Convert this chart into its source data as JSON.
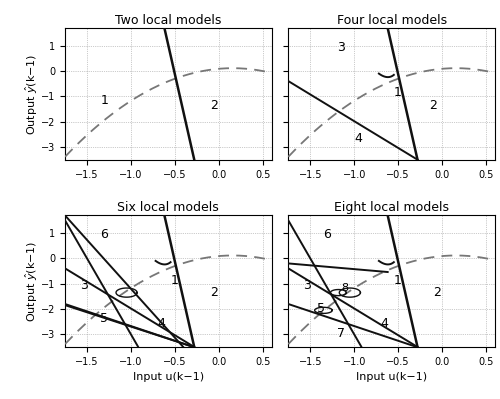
{
  "titles": [
    "Two local models",
    "Four local models",
    "Six local models",
    "Eight local models"
  ],
  "xlabel": "Input u(k−1)",
  "ylabel_left": "Output $\\hat{y}$(k−1)",
  "xlim": [
    -1.75,
    0.6
  ],
  "ylim": [
    -3.5,
    1.7
  ],
  "xticks": [
    -1.5,
    -1.0,
    -0.5,
    0.0,
    0.5
  ],
  "yticks": [
    -3,
    -2,
    -1,
    0,
    1
  ],
  "line_color": "#111111",
  "dashed_color": "#777777",
  "grid_color": "#999999",
  "lw_main": 1.8,
  "lw_sub": 1.4,
  "fontsize_title": 9,
  "fontsize_label": 8,
  "fontsize_tick": 7,
  "fontsize_region": 9
}
